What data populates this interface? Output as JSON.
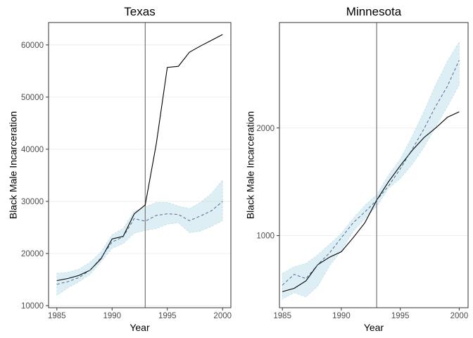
{
  "chart_data": [
    {
      "type": "line",
      "title": "Texas",
      "xlabel": "Year",
      "ylabel": "Black Male Incarceration",
      "xlim": [
        1984.25,
        2000.75
      ],
      "ylim": [
        9600,
        64300
      ],
      "xticks": [
        1985,
        1990,
        1995,
        2000
      ],
      "yticks": [
        10000,
        20000,
        30000,
        40000,
        50000,
        60000
      ],
      "vline": 1993,
      "grid": true,
      "colors": {
        "actual": "#000000",
        "synthetic": "#3f5a8a",
        "band": "#add8e6",
        "vline": "#808080"
      },
      "x": [
        1985,
        1986,
        1987,
        1988,
        1989,
        1990,
        1991,
        1992,
        1993,
        1994,
        1995,
        1996,
        1997,
        1998,
        1999,
        2000
      ],
      "series": [
        {
          "name": "",
          "style": "solid",
          "values": [
            14800,
            15200,
            15800,
            16800,
            19000,
            22800,
            23300,
            27600,
            29300,
            41000,
            55700,
            55900,
            58600,
            59800,
            60900,
            62000
          ]
        },
        {
          "name": "",
          "style": "dashed",
          "values": [
            14100,
            14600,
            15400,
            16800,
            19200,
            22200,
            23200,
            26700,
            26200,
            27300,
            27600,
            27500,
            26300,
            27200,
            28200,
            30000
          ]
        }
      ],
      "band": {
        "lower": [
          12000,
          13400,
          14600,
          16000,
          18400,
          21000,
          21900,
          23900,
          24400,
          24800,
          25600,
          25900,
          24000,
          24300,
          25200,
          26300
        ],
        "upper": [
          16200,
          16400,
          17000,
          18300,
          20300,
          23600,
          24800,
          28100,
          28900,
          29800,
          29800,
          29100,
          28600,
          29800,
          31500,
          34100
        ]
      }
    },
    {
      "type": "line",
      "title": "Minnesota",
      "xlabel": "Year",
      "ylabel": "Black Male Incarceration",
      "xlim": [
        1984.75,
        2000.75
      ],
      "ylim": [
        330,
        2980
      ],
      "xticks": [
        1985,
        1990,
        1995,
        2000
      ],
      "yticks": [
        1000,
        2000
      ],
      "vline": 1993,
      "grid": true,
      "colors": {
        "actual": "#000000",
        "synthetic": "#3f5a8a",
        "band": "#add8e6",
        "vline": "#808080"
      },
      "x": [
        1985,
        1986,
        1987,
        1988,
        1989,
        1990,
        1991,
        1992,
        1993,
        1994,
        1995,
        1996,
        1997,
        1998,
        1999,
        2000
      ],
      "series": [
        {
          "name": "",
          "style": "solid",
          "values": [
            480,
            510,
            580,
            730,
            800,
            850,
            980,
            1120,
            1330,
            1500,
            1650,
            1790,
            1910,
            2000,
            2100,
            2150
          ]
        },
        {
          "name": "",
          "style": "dashed",
          "values": [
            540,
            640,
            600,
            730,
            840,
            980,
            1120,
            1220,
            1330,
            1460,
            1620,
            1800,
            1990,
            2200,
            2390,
            2630
          ]
        }
      ],
      "band": {
        "lower": [
          410,
          470,
          430,
          530,
          720,
          860,
          1040,
          1160,
          1270,
          1440,
          1530,
          1660,
          1820,
          2010,
          2200,
          2400
        ],
        "upper": [
          650,
          710,
          740,
          820,
          920,
          1020,
          1160,
          1280,
          1380,
          1560,
          1710,
          1920,
          2150,
          2400,
          2620,
          2800
        ]
      }
    }
  ]
}
